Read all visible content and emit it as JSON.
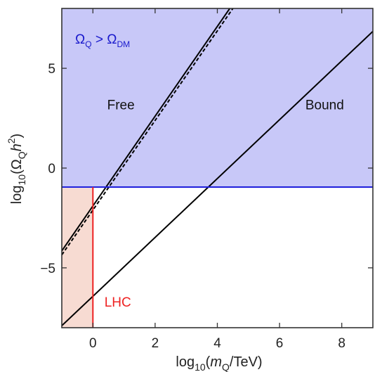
{
  "chart_data": {
    "type": "line",
    "title": "",
    "xlabel": {
      "prefix": "log",
      "sub": "10",
      "open": "(",
      "var": "m",
      "varsub": "Q",
      "rest": "/TeV)"
    },
    "ylabel": {
      "prefix": "log",
      "sub": "10",
      "open": "(Ω",
      "varsub": "Q",
      "var": "h",
      "sup": "2",
      "close": ")"
    },
    "xlim": [
      -1,
      9
    ],
    "ylim": [
      -8,
      8
    ],
    "x_ticks": [
      0,
      2,
      4,
      6,
      8
    ],
    "x_tick_labels": [
      "0",
      "2",
      "4",
      "6",
      "8"
    ],
    "y_ticks": [
      -5,
      0,
      5
    ],
    "y_tick_labels": [
      "−5",
      "0",
      "5"
    ],
    "regions": [
      {
        "name": "dm-overabundance",
        "x": [
          -1,
          9
        ],
        "y": [
          -1,
          8
        ],
        "color": "#c8c8f8"
      },
      {
        "name": "lhc-excluded",
        "x": [
          -1,
          0
        ],
        "y": [
          -8,
          -1
        ],
        "color": "#f7dbd2"
      }
    ],
    "series": [
      {
        "style": "solid",
        "color": "#000000",
        "x": [
          -1,
          9
        ],
        "y": [
          -7.9,
          6.85
        ]
      },
      {
        "style": "dashed",
        "color": "#000000",
        "x": [
          -1,
          4.5
        ],
        "y": [
          -4.35,
          8
        ]
      },
      {
        "style": "solid",
        "color": "#000000",
        "x": [
          -1,
          4.4
        ],
        "y": [
          -4.15,
          8
        ]
      },
      {
        "style": "solid",
        "color": "#2222dd",
        "x": [
          -1,
          9
        ],
        "y": [
          -0.95,
          -0.95
        ]
      },
      {
        "style": "solid",
        "color": "#ee2222",
        "x": [
          0,
          0
        ],
        "y": [
          -8,
          -0.95
        ]
      }
    ],
    "annotations": [
      {
        "text": "Free",
        "x": 0.9,
        "y": 2.95,
        "color": "#111111"
      },
      {
        "text": "Bound",
        "x": 7.45,
        "y": 2.95,
        "color": "#111111"
      },
      {
        "text": "LHC",
        "x": 0.8,
        "y": -6.95,
        "color": "#ee2222"
      }
    ],
    "region_label": {
      "o1": "Ω",
      "s1": "Q",
      "op": " > ",
      "o2": "Ω",
      "s2": "DM",
      "color": "#1a1acc"
    }
  }
}
